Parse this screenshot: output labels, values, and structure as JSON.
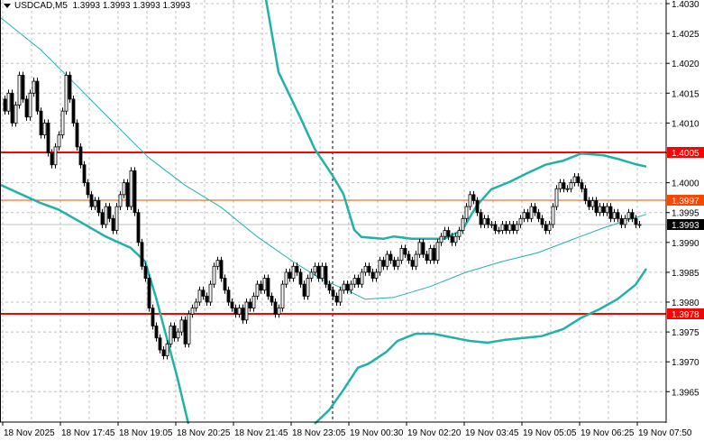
{
  "header": {
    "symbol": "USDCAD,M5",
    "ohlc": "1.3993 1.3993 1.3993 1.3993"
  },
  "chart_data": {
    "type": "candlestick",
    "symbol": "USDCAD",
    "timeframe": "M5",
    "ylim": [
      1.396,
      1.4031
    ],
    "grid": true,
    "y_ticks": [
      "1.4030",
      "1.4025",
      "1.4020",
      "1.4015",
      "1.4010",
      "1.4005",
      "1.4000",
      "1.3995",
      "1.3990",
      "1.3985",
      "1.3980",
      "1.3975",
      "1.3970",
      "1.3965"
    ],
    "x_tick_labels": [
      "18 Nov 2025",
      "18 Nov 17:45",
      "18 Nov 19:05",
      "18 Nov 20:25",
      "18 Nov 21:45",
      "18 Nov 23:05",
      "19 Nov 00:30",
      "19 Nov 02:20",
      "19 Nov 03:45",
      "19 Nov 05:05",
      "19 Nov 06:25",
      "19 Nov 07:50"
    ],
    "bars_per_x_tick": 16,
    "close": [
      1.4012,
      1.4015,
      1.401,
      1.4013,
      1.4018,
      1.4014,
      1.4011,
      1.4015,
      1.4017,
      1.4012,
      1.4008,
      1.401,
      1.4005,
      1.4003,
      1.4006,
      1.4008,
      1.4012,
      1.4018,
      1.4014,
      1.401,
      1.4006,
      1.4003,
      1.4,
      1.3998,
      1.3996,
      1.3997,
      1.3995,
      1.3993,
      1.3996,
      1.3994,
      1.3992,
      1.3996,
      1.3998,
      1.4,
      1.3996,
      1.4002,
      1.3995,
      1.399,
      1.3986,
      1.3984,
      1.3979,
      1.3976,
      1.3974,
      1.3972,
      1.3971,
      1.3973,
      1.3976,
      1.3974,
      1.3975,
      1.3977,
      1.3973,
      1.3978,
      1.3979,
      1.398,
      1.3982,
      1.3981,
      1.398,
      1.3983,
      1.3986,
      1.3987,
      1.3984,
      1.3982,
      1.398,
      1.3979,
      1.3978,
      1.3979,
      1.3977,
      1.398,
      1.3979,
      1.3981,
      1.3983,
      1.3982,
      1.3984,
      1.3981,
      1.398,
      1.3978,
      1.3979,
      1.3983,
      1.3985,
      1.3984,
      1.3986,
      1.3985,
      1.3983,
      1.3981,
      1.3984,
      1.3985,
      1.3986,
      1.3984,
      1.3986,
      1.3983,
      1.3982,
      1.3981,
      1.398,
      1.3982,
      1.3983,
      1.3982,
      1.3983,
      1.3984,
      1.3983,
      1.3985,
      1.3986,
      1.3985,
      1.3984,
      1.3985,
      1.3987,
      1.3986,
      1.3988,
      1.3987,
      1.3986,
      1.3987,
      1.3989,
      1.3988,
      1.3987,
      1.3986,
      1.3988,
      1.399,
      1.3988,
      1.3987,
      1.3989,
      1.3987,
      1.399,
      1.3991,
      1.3992,
      1.3991,
      1.399,
      1.3991,
      1.3992,
      1.3994,
      1.3996,
      1.3998,
      1.3997,
      1.3995,
      1.3993,
      1.3994,
      1.3993,
      1.3993,
      1.3992,
      1.3992,
      1.3993,
      1.3992,
      1.3993,
      1.3992,
      1.3993,
      1.3994,
      1.3995,
      1.3994,
      1.3996,
      1.3995,
      1.3994,
      1.3993,
      1.3992,
      1.3993,
      1.3996,
      1.3999,
      1.4,
      1.3999,
      1.3999,
      1.4,
      1.4001,
      1.4,
      1.3999,
      1.3997,
      1.3996,
      1.3997,
      1.3995,
      1.3996,
      1.3995,
      1.3996,
      1.3994,
      1.3995,
      1.3994,
      1.3993,
      1.3994,
      1.3995,
      1.3994,
      1.3993,
      1.3993
    ],
    "bollinger_upper": [
      [
        71,
        1.4036
      ],
      [
        76,
        1.40185
      ],
      [
        82,
        1.4011
      ],
      [
        86,
        1.40057
      ],
      [
        91,
        1.40012
      ],
      [
        94,
        1.39981
      ],
      [
        97,
        1.39921
      ],
      [
        99,
        1.39909
      ],
      [
        105,
        1.39906
      ],
      [
        108,
        1.3991
      ],
      [
        113,
        1.39906
      ],
      [
        122,
        1.39906
      ],
      [
        127,
        1.39921
      ],
      [
        131,
        1.39962
      ],
      [
        135,
        1.39989
      ],
      [
        140,
        1.40001
      ],
      [
        145,
        1.40016
      ],
      [
        150,
        1.4003
      ],
      [
        155,
        1.40037
      ],
      [
        160,
        1.40049
      ],
      [
        166,
        1.40046
      ],
      [
        170,
        1.4004
      ],
      [
        175,
        1.40031
      ],
      [
        178,
        1.40027
      ]
    ],
    "bollinger_lower_1": [
      [
        -1,
        1.39996
      ],
      [
        10,
        1.39966
      ],
      [
        15,
        1.39955
      ],
      [
        22,
        1.39931
      ],
      [
        28,
        1.3991
      ],
      [
        35,
        1.39891
      ],
      [
        39,
        1.39868
      ],
      [
        42,
        1.39808
      ],
      [
        45,
        1.3974
      ],
      [
        48,
        1.39672
      ],
      [
        51,
        1.39596
      ]
    ],
    "bollinger_lower_2": [
      [
        86,
        1.39596
      ],
      [
        90,
        1.39619
      ],
      [
        94,
        1.39653
      ],
      [
        98,
        1.3969
      ],
      [
        101,
        1.39697
      ],
      [
        106,
        1.39717
      ],
      [
        109,
        1.39735
      ],
      [
        114,
        1.39747
      ],
      [
        119,
        1.39747
      ],
      [
        124,
        1.39741
      ],
      [
        129,
        1.39735
      ],
      [
        134,
        1.39732
      ],
      [
        139,
        1.39737
      ],
      [
        144,
        1.3974
      ],
      [
        149,
        1.39743
      ],
      [
        155,
        1.39755
      ],
      [
        160,
        1.39774
      ],
      [
        165,
        1.39788
      ],
      [
        170,
        1.39805
      ],
      [
        175,
        1.39829
      ],
      [
        178,
        1.39856
      ]
    ],
    "moving_average": [
      [
        -1,
        1.40276
      ],
      [
        10,
        1.40223
      ],
      [
        20,
        1.40163
      ],
      [
        30,
        1.40102
      ],
      [
        40,
        1.40042
      ],
      [
        50,
        1.39996
      ],
      [
        60,
        1.39959
      ],
      [
        70,
        1.3991
      ],
      [
        80,
        1.39868
      ],
      [
        88,
        1.39838
      ],
      [
        95,
        1.3982
      ],
      [
        100,
        1.39805
      ],
      [
        108,
        1.39808
      ],
      [
        118,
        1.39826
      ],
      [
        128,
        1.3985
      ],
      [
        138,
        1.39868
      ],
      [
        148,
        1.39883
      ],
      [
        158,
        1.39906
      ],
      [
        166,
        1.39924
      ],
      [
        172,
        1.39936
      ],
      [
        178,
        1.39947
      ]
    ],
    "separator_bar_index": 91,
    "levels": [
      {
        "label": "1.4005",
        "price": 1.4005,
        "color": "#ff0000"
      },
      {
        "label": "1.3997",
        "price": 1.3997,
        "color": "#ff4500"
      },
      {
        "label": "1.3978",
        "price": 1.3978,
        "color": "#ff0000"
      },
      {
        "label": "1.3993",
        "price": 1.3993,
        "color": "#000000",
        "line_color": "#c0c0c0"
      }
    ],
    "colors": {
      "band": "#20b2aa",
      "bull_body": "#ffffff",
      "bear_body": "#000000",
      "grid": "#c0c0c0"
    }
  }
}
